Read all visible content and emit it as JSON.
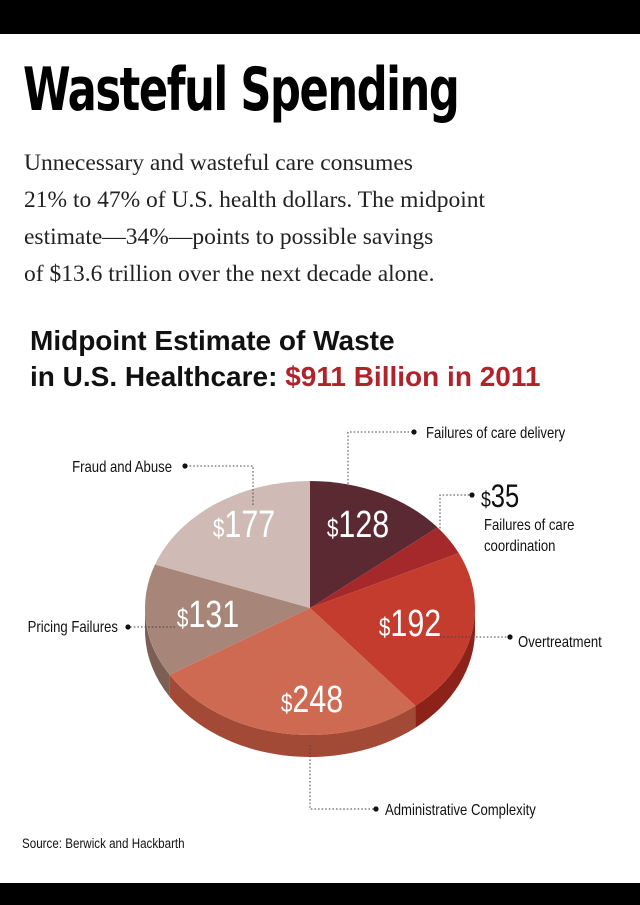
{
  "header": {
    "title": "Wasteful Spending",
    "intro_lines": [
      "Unnecessary and wasteful care consumes",
      "21% to 47% of U.S. health dollars. The midpoint",
      "estimate—34%—points to possible savings",
      "of $13.6 trillion over the next decade alone."
    ]
  },
  "chart_title": {
    "line1": "Midpoint Estimate of Waste",
    "line2_prefix": "in U.S. Healthcare: ",
    "line2_highlight": "$911 Billion in 2011"
  },
  "chart_data": {
    "type": "pie",
    "title": "Midpoint Estimate of Waste in U.S. Healthcare: $911 Billion in 2011",
    "units": "$ billions",
    "total": 911,
    "slices": [
      {
        "label": "Failures of care delivery",
        "value": 128,
        "value_label": "128",
        "color": "#5a2932",
        "side_color": "#3d1a20"
      },
      {
        "label": "Failures of care coordination",
        "value": 35,
        "value_label": "35",
        "color": "#a5292b",
        "side_color": "#6f1719"
      },
      {
        "label": "Overtreatment",
        "value": 192,
        "value_label": "192",
        "color": "#c43c2d",
        "side_color": "#8c2218"
      },
      {
        "label": "Administrative Complexity",
        "value": 248,
        "value_label": "248",
        "color": "#cf6a52",
        "side_color": "#a24a36"
      },
      {
        "label": "Pricing Failures",
        "value": 131,
        "value_label": "131",
        "color": "#a78579",
        "side_color": "#7b5f55"
      },
      {
        "label": "Fraud and Abuse",
        "value": 177,
        "value_label": "177",
        "color": "#cfbab5",
        "side_color": "#a39290"
      }
    ],
    "label_prefix": "$"
  },
  "source": "Source: Berwick and Hackbarth"
}
